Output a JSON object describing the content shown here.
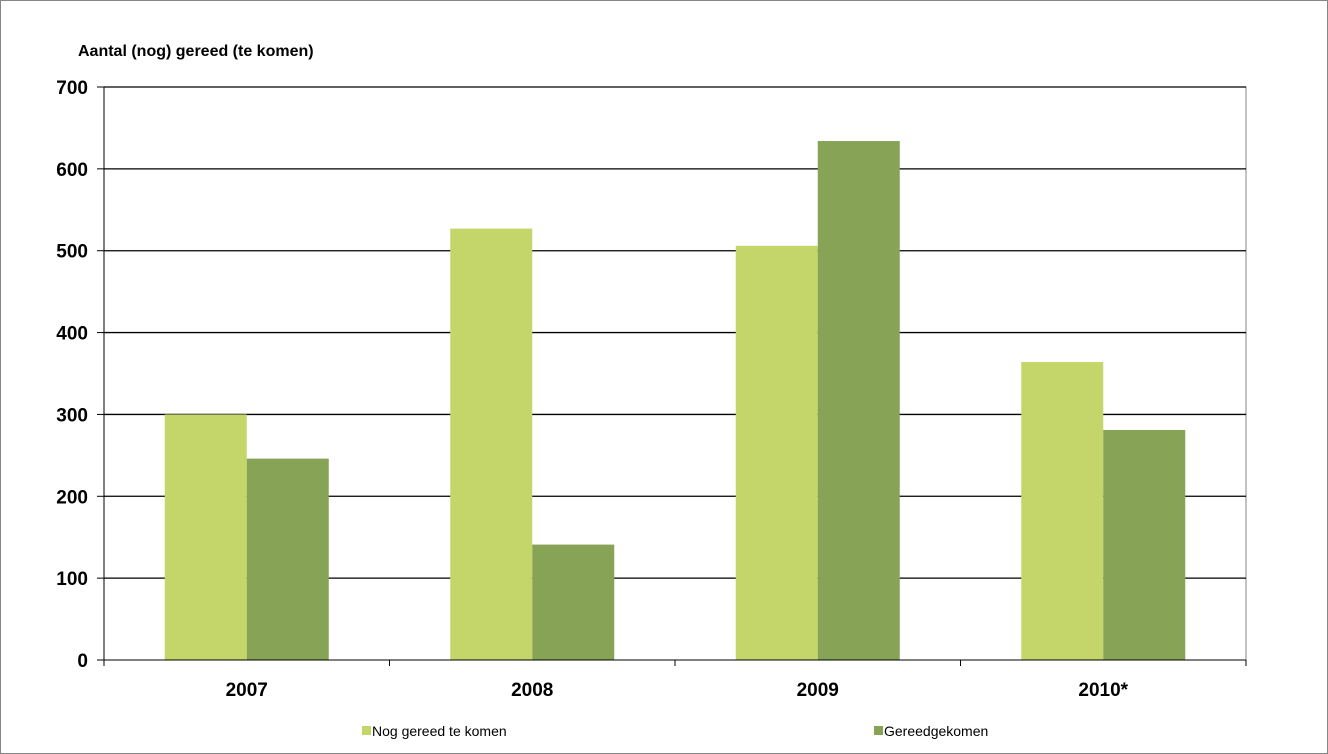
{
  "chart_data": {
    "type": "bar",
    "title": "",
    "ylabel": "Aantal (nog) gereed (te komen)",
    "xlabel": "",
    "categories": [
      "2007",
      "2008",
      "2009",
      "2010*"
    ],
    "series": [
      {
        "name": "Nog gereed te komen",
        "color": "#c4d56a",
        "values": [
          300,
          527,
          506,
          364
        ]
      },
      {
        "name": "Gereedgekomen",
        "color": "#87a356",
        "values": [
          246,
          141,
          634,
          281
        ]
      }
    ],
    "ylim": [
      0,
      700
    ],
    "yticks": [
      "0",
      "100",
      "200",
      "300",
      "400",
      "500",
      "600",
      "700"
    ],
    "grid": true,
    "legend_position": "bottom"
  }
}
